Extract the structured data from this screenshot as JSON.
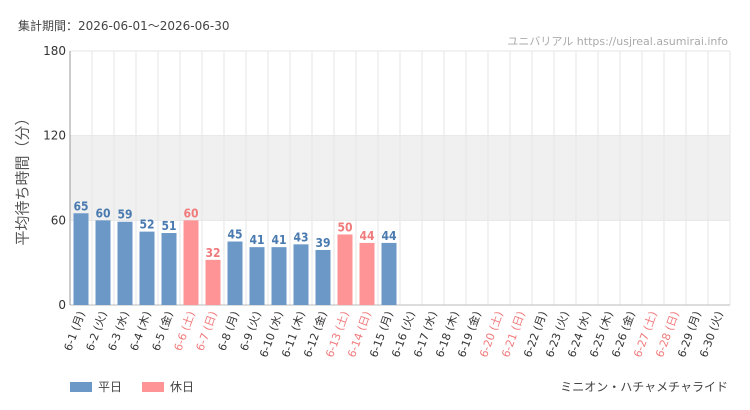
{
  "header": {
    "period": "集計期間：2026-06-01～2026-06-30",
    "watermark": "ユニバリアル https://usjreal.asumirai.info"
  },
  "footer": {
    "attraction": "ミニオン・ハチャメチャライド"
  },
  "legend": [
    {
      "label": "平日",
      "color": "#6c98c7"
    },
    {
      "label": "休日",
      "color": "#ff9496"
    }
  ],
  "chart_data": {
    "type": "bar",
    "ylabel": "平均待ち時間（分）",
    "xlabel": "",
    "ylim": [
      0,
      180
    ],
    "yticks": [
      0,
      60,
      120,
      180
    ],
    "categories": [
      "6-1 (月)",
      "6-2 (火)",
      "6-3 (水)",
      "6-4 (木)",
      "6-5 (金)",
      "6-6 (土)",
      "6-7 (日)",
      "6-8 (月)",
      "6-9 (火)",
      "6-10 (水)",
      "6-11 (木)",
      "6-12 (金)",
      "6-13 (土)",
      "6-14 (日)",
      "6-15 (月)",
      "6-16 (火)",
      "6-17 (水)",
      "6-18 (木)",
      "6-19 (金)",
      "6-20 (土)",
      "6-21 (日)",
      "6-22 (月)",
      "6-23 (火)",
      "6-24 (水)",
      "6-25 (木)",
      "6-26 (金)",
      "6-27 (土)",
      "6-28 (日)",
      "6-29 (月)",
      "6-30 (火)"
    ],
    "values": [
      65,
      60,
      59,
      52,
      51,
      60,
      32,
      45,
      41,
      41,
      43,
      39,
      50,
      44,
      44,
      null,
      null,
      null,
      null,
      null,
      null,
      null,
      null,
      null,
      null,
      null,
      null,
      null,
      null,
      null
    ],
    "holiday": [
      false,
      false,
      false,
      false,
      false,
      true,
      true,
      false,
      false,
      false,
      false,
      false,
      true,
      true,
      false,
      false,
      false,
      false,
      false,
      true,
      true,
      false,
      false,
      false,
      false,
      false,
      true,
      true,
      false,
      false
    ],
    "colors": {
      "weekday": "#6c98c7",
      "holiday": "#ff9496",
      "weekday_text": "#4a7bb0",
      "holiday_text": "#f07a7c",
      "band": "#f0f0f0",
      "grid": "#e6e6e6"
    }
  }
}
